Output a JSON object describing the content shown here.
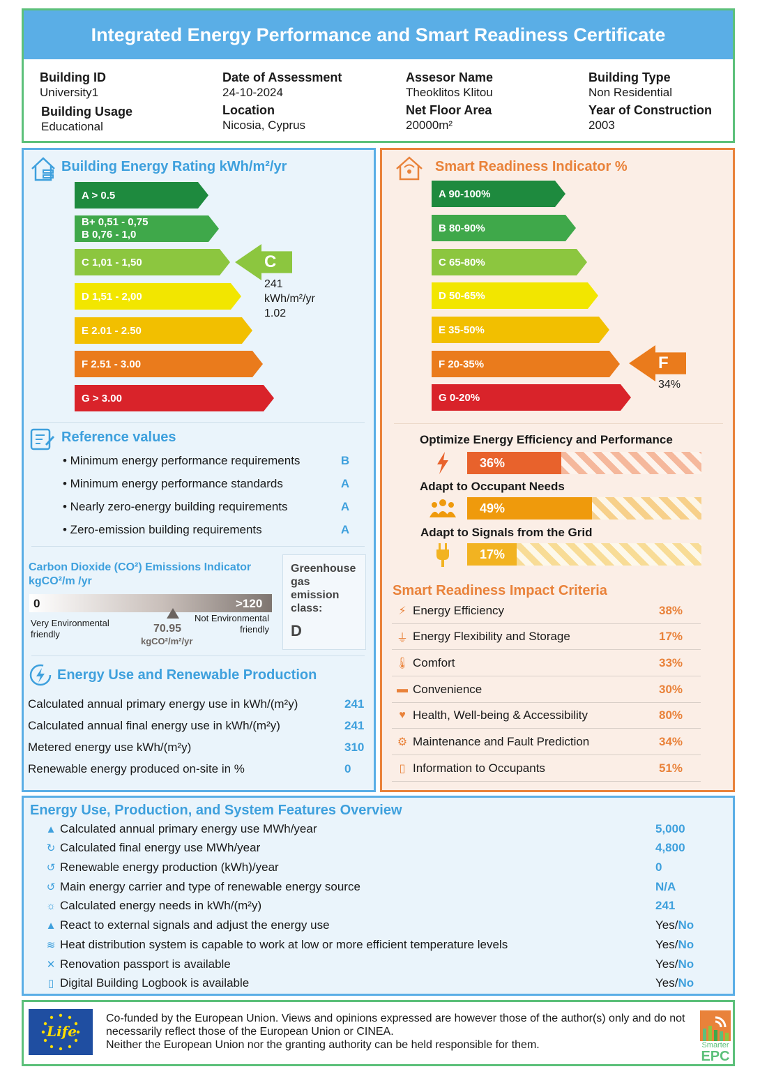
{
  "header": {
    "title": "Integrated Energy Performance and Smart Readiness Certificate",
    "fields": [
      {
        "label": "Building ID",
        "value": "University1"
      },
      {
        "label": "Date of Assessment",
        "value": "24-10-2024"
      },
      {
        "label": "Assesor Name",
        "value": "Theoklitos Klitou"
      },
      {
        "label": "Building Type",
        "value": "Non Residential"
      },
      {
        "label": "Building Usage",
        "value": "Educational"
      },
      {
        "label": "Location",
        "value": "Nicosia, Cyprus"
      },
      {
        "label": "Net Floor Area",
        "value": "20000m²"
      },
      {
        "label": "Year of Construction",
        "value": "2003"
      }
    ]
  },
  "energy_rating": {
    "title": "Building Energy Rating kWh/m²/yr",
    "bands": [
      {
        "label": "A > 0.5",
        "color": "#1e8a3e"
      },
      {
        "label": "B+ 0,51 - 0,75",
        "label2": "B 0,76 - 1,0",
        "color": "#3fa84a"
      },
      {
        "label": "C 1,01 - 1,50",
        "color": "#8cc63f"
      },
      {
        "label": "D 1,51 - 2,00",
        "color": "#f2e600"
      },
      {
        "label": "E 2.01 - 2.50",
        "color": "#f2bf00"
      },
      {
        "label": "F 2.51 - 3.00",
        "color": "#ea7b1c"
      },
      {
        "label": "G > 3.00",
        "color": "#d9232a"
      }
    ],
    "current_class": "C",
    "current_value": "241",
    "current_unit": "kWh/m²/yr",
    "current_ratio": "1.02"
  },
  "reference": {
    "title": "Reference values",
    "items": [
      {
        "label": "• Minimum energy performance requirements",
        "value": "B"
      },
      {
        "label": "• Minimum energy performance standards",
        "value": "A"
      },
      {
        "label": "• Nearly zero-energy building requirements",
        "value": "A"
      },
      {
        "label": "• Zero-emission building requirements",
        "value": "A"
      }
    ]
  },
  "co2": {
    "title": "Carbon Dioxide (CO²) Emissions Indicator",
    "unit_title": "kgCO²/m /yr",
    "scale_min": "0",
    "scale_max": ">120",
    "left_label": "Very Environmental friendly",
    "right_label": "Not Environmental friendly",
    "value": 70.95,
    "value_text": "70.95",
    "value_unit": "kgCO²/m²/yr",
    "ghg_label": "Greenhouse gas emission class:",
    "ghg_class": "D"
  },
  "energy_use": {
    "title": "Energy Use and Renewable Production",
    "rows": [
      {
        "label": "Calculated annual primary energy use in kWh/(m²y)",
        "value": "241"
      },
      {
        "label": "Calculated annual final energy use in kWh/(m²y)",
        "value": "241"
      },
      {
        "label": "Metered energy use kWh/(m²y)",
        "value": "310"
      },
      {
        "label": "Renewable energy produced on-site in %",
        "value": "0"
      }
    ]
  },
  "sri": {
    "title": "Smart Readiness Indicator %",
    "bands": [
      {
        "label": "A 90-100%",
        "color": "#1e8a3e"
      },
      {
        "label": "B 80-90%",
        "color": "#3fa84a"
      },
      {
        "label": "C 65-80%",
        "color": "#8cc63f"
      },
      {
        "label": "D 50-65%",
        "color": "#f2e600"
      },
      {
        "label": "E 35-50%",
        "color": "#f2bf00"
      },
      {
        "label": "F 20-35%",
        "color": "#ea7b1c"
      },
      {
        "label": "G 0-20%",
        "color": "#d9232a"
      }
    ],
    "current_class": "F",
    "current_value": "34%",
    "functions": [
      {
        "title": "Optimize Energy Efficiency and Performance",
        "value": 36,
        "value_text": "36%",
        "color": "#e8622c",
        "hatch": "#f5b89c"
      },
      {
        "title": "Adapt to Occupant Needs",
        "value": 49,
        "value_text": "49%",
        "color": "#ef9a0c",
        "hatch": "#f7d08a"
      },
      {
        "title": "Adapt to Signals from the Grid",
        "value": 17,
        "value_text": "17%",
        "color": "#f2b321",
        "hatch": "#f8dc96"
      }
    ]
  },
  "impact": {
    "title": "Smart Readiness Impact Criteria",
    "rows": [
      {
        "label": "Energy Efficiency",
        "value": "38%",
        "icon": "bolt-icon"
      },
      {
        "label": "Energy Flexibility and Storage",
        "value": "17%",
        "icon": "plug-icon"
      },
      {
        "label": "Comfort",
        "value": "33%",
        "icon": "thermometer-icon"
      },
      {
        "label": "Convenience",
        "value": "30%",
        "icon": "sofa-icon"
      },
      {
        "label": "Health, Well-being & Accessibility",
        "value": "80%",
        "icon": "heart-icon"
      },
      {
        "label": "Maintenance and Fault Prediction",
        "value": "34%",
        "icon": "gear-icon"
      },
      {
        "label": "Information to Occupants",
        "value": "51%",
        "icon": "tablet-icon"
      }
    ]
  },
  "overview": {
    "title": "Energy Use, Production, and System Features Overview",
    "rows": [
      {
        "label": "Calculated annual primary energy use MWh/year",
        "value": "5,000"
      },
      {
        "label": "Calculated final energy use MWh/year",
        "value": "4,800"
      },
      {
        "label": "Renewable energy production (kWh)/year",
        "value": "0"
      },
      {
        "label": "Main energy carrier and type of renewable energy source",
        "value": "N/A"
      },
      {
        "label": "Calculated energy needs in kWh/(m²y)",
        "value": "241"
      },
      {
        "label": "React to external signals and adjust the energy use",
        "yes": "Yes/",
        "no": "No"
      },
      {
        "label": "Heat distribution system is capable to work at low or more efficient temperature levels",
        "yes": "Yes/",
        "no": "No"
      },
      {
        "label": "Renovation passport is available",
        "yes": "Yes/",
        "no": "No"
      },
      {
        "label": "Digital Building Logbook is available",
        "yes": "Yes/",
        "no": "No"
      }
    ]
  },
  "footer": {
    "text1": "Co-funded by the European Union. Views and opinions expressed are however those of the author(s) only and do not necessarily reflect those of the European Union or CINEA.",
    "text2": "Neither the European Union nor the granting authority can be held responsible for them.",
    "life_logo": "Life",
    "brand_top": "Smarter",
    "brand_bottom": "EPC"
  }
}
